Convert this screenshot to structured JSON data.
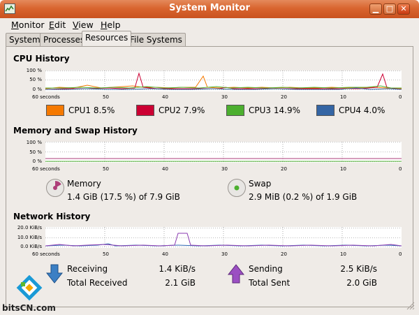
{
  "window": {
    "title": "System Monitor",
    "minimize_symbol": "▁",
    "maximize_symbol": "□",
    "close_symbol": "✕"
  },
  "menubar": {
    "items": [
      "Monitor",
      "Edit",
      "View",
      "Help"
    ]
  },
  "tabs": [
    "System",
    "Processes",
    "Resources",
    "File Systems"
  ],
  "active_tab": "Resources",
  "cpu": {
    "title": "CPU History",
    "y_labels": [
      "100 %",
      "50 %",
      "0 %"
    ],
    "x_labels": [
      "60 seconds",
      "50",
      "40",
      "30",
      "20",
      "10",
      "0"
    ],
    "legend": [
      {
        "label": "CPU1",
        "value": "8.5%",
        "color": "#f57900"
      },
      {
        "label": "CPU2",
        "value": "7.9%",
        "color": "#cc0033"
      },
      {
        "label": "CPU3",
        "value": "14.9%",
        "color": "#4caf2f"
      },
      {
        "label": "CPU4",
        "value": "4.0%",
        "color": "#3465a4"
      }
    ]
  },
  "memory": {
    "title": "Memory and Swap History",
    "y_labels": [
      "100 %",
      "50 %",
      "0 %"
    ],
    "x_labels": [
      "60 seconds",
      "50",
      "40",
      "30",
      "20",
      "10",
      "0"
    ],
    "memory_label": "Memory",
    "memory_value": "1.4 GiB (17.5 %) of 7.9 GiB",
    "memory_color": "#ad3e79",
    "swap_label": "Swap",
    "swap_value": "2.9 MiB (0.2 %) of 1.9 GiB",
    "swap_color": "#4caf2f"
  },
  "network": {
    "title": "Network History",
    "y_labels": [
      "20.0 KiB/s",
      "10.0 KiB/s",
      "0.0 KiB/s"
    ],
    "x_labels": [
      "60 seconds",
      "50",
      "40",
      "30",
      "20",
      "10",
      "0"
    ],
    "receiving_label": "Receiving",
    "receiving_value": "1.4 KiB/s",
    "total_received_label": "Total Received",
    "total_received_value": "2.1 GiB",
    "sending_label": "Sending",
    "sending_value": "2.5 KiB/s",
    "total_sent_label": "Total Sent",
    "total_sent_value": "2.0 GiB",
    "receiving_color": "#2e67b1",
    "sending_color": "#8a3ab0"
  },
  "watermark": {
    "text": "bitsCN.com"
  }
}
